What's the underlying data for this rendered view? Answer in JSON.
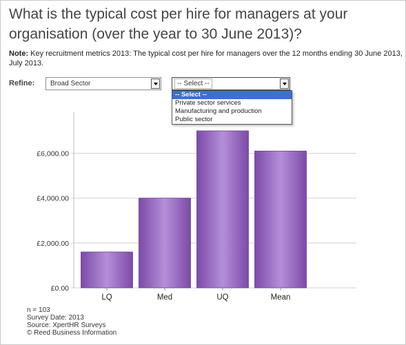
{
  "title": "What is the typical cost per hire for managers at your organisation (over the year to 30 June 2013)?",
  "note": {
    "label": "Note:",
    "text": "Key recruitment metrics 2013: The typical cost per hire for managers over the 12 months ending 30 June 2013, July 2013."
  },
  "refine": {
    "label": "Refine:",
    "sector_select": {
      "value": "Broad Sector"
    },
    "sub_select": {
      "value": "-- Select --"
    },
    "dropdown_options": [
      "-- Select --",
      "Private sector services",
      "Manufacturing and production",
      "Public sector"
    ]
  },
  "chart_data": {
    "type": "bar",
    "categories": [
      "LQ",
      "Med",
      "UQ",
      "Mean"
    ],
    "values": [
      1600,
      4000,
      7000,
      6100
    ],
    "ylim": [
      0,
      7000
    ],
    "yticks": [
      0,
      2000,
      4000,
      6000
    ],
    "ytick_labels": [
      "£0.00",
      "£2,000.00",
      "£4,000.00",
      "£6,000.00"
    ],
    "grid": true,
    "bar_color": "#9a6ac4",
    "title": "",
    "xlabel": "",
    "ylabel": ""
  },
  "footer": {
    "n": "n = 103",
    "survey_date": "Survey Date: 2013",
    "source": "Source: XpertHR Surveys",
    "copyright": "© Reed Business Information"
  }
}
